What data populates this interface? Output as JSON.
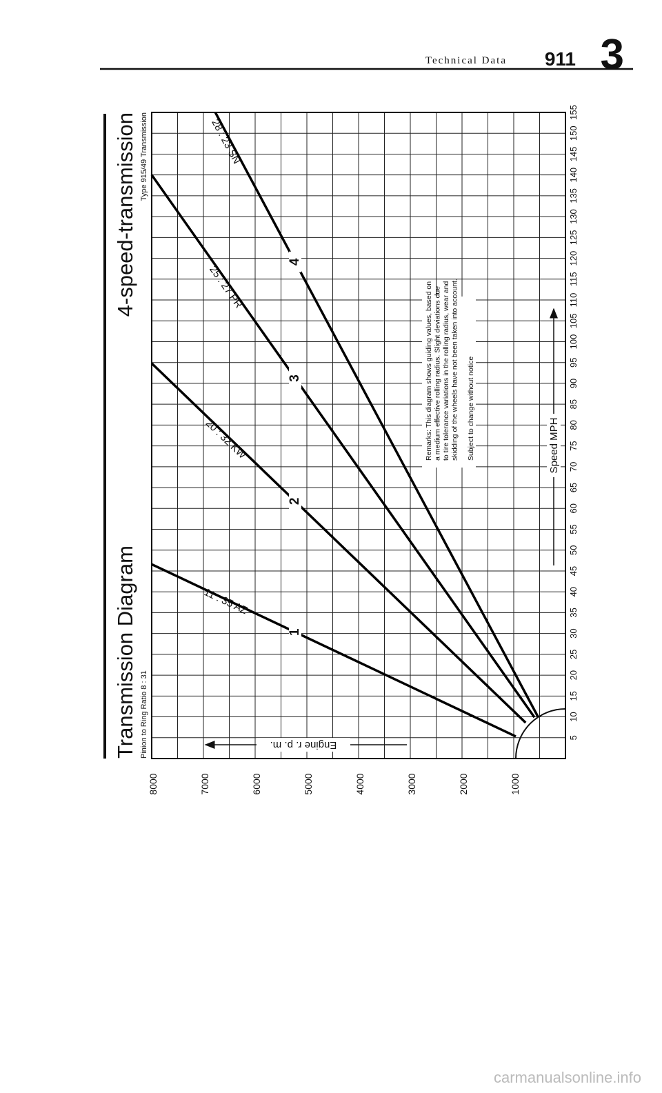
{
  "header": {
    "section": "Technical Data",
    "model": "911",
    "page": "3"
  },
  "footer": "carmanualsonline.info",
  "chart_data": {
    "type": "line",
    "title": "Transmission Diagram",
    "subtitle": "4-speed-transmission",
    "left_note": "Pinion to Ring Ratio  8 : 31",
    "right_note": "Type 915/49 Transmission",
    "x_label": "Speed MPH",
    "y_label": "Engine r. p. m.",
    "xlim": [
      0,
      155
    ],
    "ylim": [
      0,
      8000
    ],
    "xticks": [
      5,
      10,
      15,
      20,
      25,
      30,
      35,
      40,
      45,
      50,
      55,
      60,
      65,
      70,
      75,
      80,
      85,
      90,
      95,
      100,
      105,
      110,
      115,
      120,
      125,
      130,
      135,
      140,
      145,
      150,
      155
    ],
    "yticks": [
      1000,
      2000,
      3000,
      4000,
      5000,
      6000,
      7000,
      8000
    ],
    "grid": true,
    "series": [
      {
        "name": "1",
        "label": "11 : 35 AZ",
        "color": "#000000",
        "x": [
          5.3,
          46.6
        ],
        "values": [
          960,
          8000
        ]
      },
      {
        "name": "2",
        "label": "20 : 32 KW",
        "color": "#000000",
        "x": [
          8.6,
          94.8
        ],
        "values": [
          770,
          8000
        ]
      },
      {
        "name": "3",
        "label": "25 : 27 PR",
        "color": "#000000",
        "x": [
          9.9,
          140
        ],
        "values": [
          600,
          8000
        ]
      },
      {
        "name": "4",
        "label": "28 : 23 SN",
        "color": "#000000",
        "x": [
          10,
          155
        ],
        "values": [
          530,
          6770
        ]
      }
    ],
    "remarks": [
      "Remarks: This diagram shows guiding values, based on",
      "a medium effective rolling radius. Slight deviations due",
      "to tire tolerance variations in the rolling radius, wear and",
      "skidding of the wheels have not been taken into account."
    ],
    "note": "Subject to change without notice"
  }
}
